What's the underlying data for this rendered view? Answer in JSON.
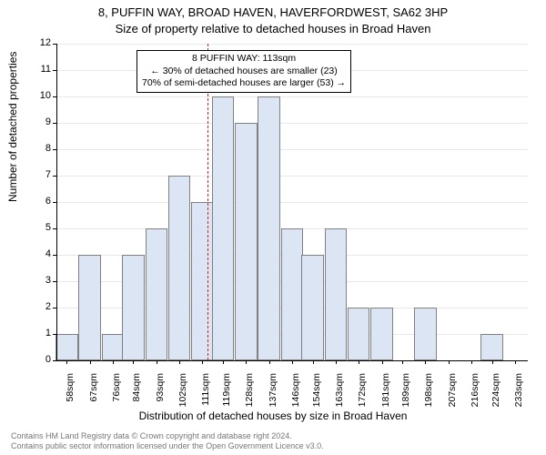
{
  "title_line1": "8, PUFFIN WAY, BROAD HAVEN, HAVERFORDWEST, SA62 3HP",
  "title_line2": "Size of property relative to detached houses in Broad Haven",
  "y_axis_title": "Number of detached properties",
  "x_axis_title": "Distribution of detached houses by size in Broad Haven",
  "chart": {
    "type": "histogram",
    "x_min": 54,
    "x_max": 238,
    "y_min": 0,
    "y_max": 12,
    "y_ticks": [
      0,
      1,
      2,
      3,
      4,
      5,
      6,
      7,
      8,
      9,
      10,
      11,
      12
    ],
    "x_ticks": [
      58,
      67,
      76,
      84,
      93,
      102,
      111,
      119,
      128,
      137,
      146,
      154,
      163,
      172,
      181,
      189,
      198,
      207,
      216,
      224,
      233
    ],
    "x_tick_labels": [
      "58sqm",
      "67sqm",
      "76sqm",
      "84sqm",
      "93sqm",
      "102sqm",
      "111sqm",
      "119sqm",
      "128sqm",
      "137sqm",
      "146sqm",
      "154sqm",
      "163sqm",
      "172sqm",
      "181sqm",
      "189sqm",
      "198sqm",
      "207sqm",
      "216sqm",
      "224sqm",
      "233sqm"
    ],
    "bin_width": 8.7,
    "bars": [
      {
        "x": 58,
        "count": 1
      },
      {
        "x": 67,
        "count": 4
      },
      {
        "x": 76,
        "count": 1
      },
      {
        "x": 84,
        "count": 4
      },
      {
        "x": 93,
        "count": 5
      },
      {
        "x": 102,
        "count": 7
      },
      {
        "x": 111,
        "count": 6
      },
      {
        "x": 119,
        "count": 10
      },
      {
        "x": 128,
        "count": 9
      },
      {
        "x": 137,
        "count": 10
      },
      {
        "x": 146,
        "count": 5
      },
      {
        "x": 154,
        "count": 4
      },
      {
        "x": 163,
        "count": 5
      },
      {
        "x": 172,
        "count": 2
      },
      {
        "x": 181,
        "count": 2
      },
      {
        "x": 189,
        "count": 0
      },
      {
        "x": 198,
        "count": 2
      },
      {
        "x": 207,
        "count": 0
      },
      {
        "x": 216,
        "count": 0
      },
      {
        "x": 224,
        "count": 1
      },
      {
        "x": 233,
        "count": 0
      }
    ],
    "bar_fill": "#dbe5f3",
    "bar_border": "#808080",
    "grid_color": "#e8e8e8",
    "plot_bg": "#ffffff",
    "reference_line": {
      "x": 113,
      "color": "#d62020"
    }
  },
  "annotation": {
    "line1": "8 PUFFIN WAY: 113sqm",
    "line2": "← 30% of detached houses are smaller (23)",
    "line3": "70% of semi-detached houses are larger (53) →"
  },
  "footer_line1": "Contains HM Land Registry data © Crown copyright and database right 2024.",
  "footer_line2": "Contains public sector information licensed under the Open Government Licence v3.0."
}
